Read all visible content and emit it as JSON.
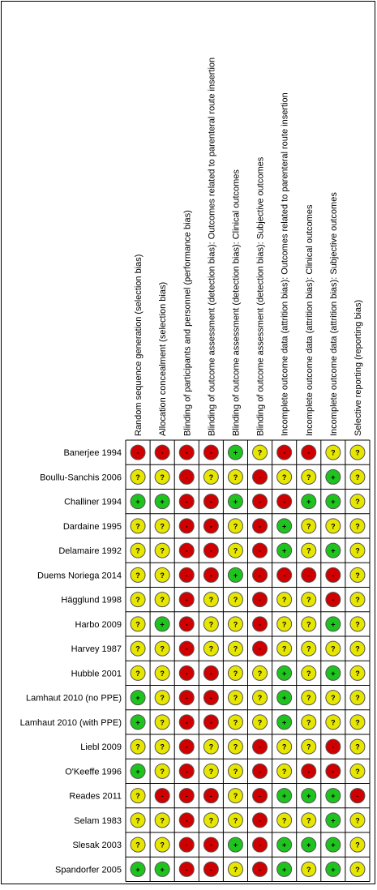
{
  "table": {
    "columns": [
      "Random sequence generation (selection bias)",
      "Allocation concealment (selection bias)",
      "Blinding of participants and personnel (performance bias)",
      "Blinding of outcome assessment (detection bias): Outcomes related to parenteral route insertion",
      "Blinding of outcome assessment (detection bias): Clinical outcomes",
      "Blinding of outcome assessment (detection bias): Subjective outcomes",
      "Incomplete outcome data (attrition bias): Outcomes related to parenteral route insertion",
      "Incomplete outcome data (attrition bias): Clinical outcomes",
      "Incomplete outcome data (attrition bias): Subjective outcomes",
      "Selective reporting (reporting bias)"
    ],
    "colors": {
      "+": "#1ec31e",
      "-": "#d00000",
      "?": "#e6e600"
    },
    "rows": [
      {
        "study": "Banerjee 1994",
        "ratings": [
          "-",
          "-",
          "-",
          "-",
          "+",
          "?",
          "-",
          "-",
          "?",
          "?"
        ]
      },
      {
        "study": "Boullu-Sanchis 2006",
        "ratings": [
          "?",
          "?",
          "-",
          "?",
          "?",
          "-",
          "?",
          "?",
          "+",
          "?"
        ]
      },
      {
        "study": "Challiner 1994",
        "ratings": [
          "+",
          "+",
          "-",
          "-",
          "+",
          "-",
          "-",
          "+",
          "+",
          "?"
        ]
      },
      {
        "study": "Dardaine 1995",
        "ratings": [
          "?",
          "?",
          "-",
          "-",
          "?",
          "-",
          "+",
          "?",
          "?",
          "?"
        ]
      },
      {
        "study": "Delamaire 1992",
        "ratings": [
          "?",
          "?",
          "-",
          "-",
          "?",
          "-",
          "+",
          "?",
          "+",
          "?"
        ]
      },
      {
        "study": "Duems Noriega 2014",
        "ratings": [
          "?",
          "?",
          "-",
          "-",
          "+",
          "-",
          "-",
          "-",
          "-",
          "?"
        ]
      },
      {
        "study": "Hägglund 1998",
        "ratings": [
          "?",
          "?",
          "-",
          "?",
          "?",
          "-",
          "?",
          "?",
          "-",
          "?"
        ]
      },
      {
        "study": "Harbo 2009",
        "ratings": [
          "?",
          "+",
          "-",
          "?",
          "?",
          "-",
          "?",
          "?",
          "+",
          "?"
        ]
      },
      {
        "study": "Harvey 1987",
        "ratings": [
          "?",
          "?",
          "-",
          "?",
          "?",
          "-",
          "?",
          "?",
          "?",
          "?"
        ]
      },
      {
        "study": "Hubble 2001",
        "ratings": [
          "?",
          "?",
          "-",
          "-",
          "?",
          "?",
          "+",
          "?",
          "+",
          "?"
        ]
      },
      {
        "study": "Lamhaut 2010 (no PPE)",
        "ratings": [
          "+",
          "?",
          "-",
          "-",
          "?",
          "?",
          "+",
          "?",
          "?",
          "?"
        ]
      },
      {
        "study": "Lamhaut 2010 (with PPE)",
        "ratings": [
          "+",
          "?",
          "-",
          "-",
          "?",
          "?",
          "+",
          "?",
          "?",
          "?"
        ]
      },
      {
        "study": "Liebl 2009",
        "ratings": [
          "?",
          "?",
          "-",
          "?",
          "?",
          "-",
          "?",
          "?",
          "-",
          "?"
        ]
      },
      {
        "study": "O'Keeffe 1996",
        "ratings": [
          "+",
          "?",
          "-",
          "?",
          "?",
          "-",
          "?",
          "-",
          "-",
          "?"
        ]
      },
      {
        "study": "Reades 2011",
        "ratings": [
          "?",
          "-",
          "-",
          "-",
          "?",
          "-",
          "+",
          "+",
          "+",
          "-"
        ]
      },
      {
        "study": "Selam 1983",
        "ratings": [
          "?",
          "?",
          "-",
          "?",
          "?",
          "-",
          "?",
          "?",
          "+",
          "?"
        ]
      },
      {
        "study": "Slesak 2003",
        "ratings": [
          "?",
          "?",
          "-",
          "-",
          "+",
          "-",
          "+",
          "+",
          "+",
          "?"
        ]
      },
      {
        "study": "Spandorfer 2005",
        "ratings": [
          "+",
          "+",
          "-",
          "-",
          "?",
          "-",
          "+",
          "?",
          "+",
          "?"
        ]
      }
    ]
  }
}
